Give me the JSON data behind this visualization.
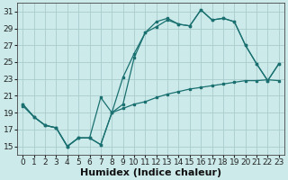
{
  "bg_color": "#cceaea",
  "grid_color": "#aacccc",
  "line_color": "#1a7070",
  "xlabel": "Humidex (Indice chaleur)",
  "xlabel_fontsize": 8,
  "tick_fontsize": 6.5,
  "ylim": [
    14,
    32
  ],
  "xlim": [
    -0.5,
    23.5
  ],
  "yticks": [
    15,
    17,
    19,
    21,
    23,
    25,
    27,
    29,
    31
  ],
  "xticks": [
    0,
    1,
    2,
    3,
    4,
    5,
    6,
    7,
    8,
    9,
    10,
    11,
    12,
    13,
    14,
    15,
    16,
    17,
    18,
    19,
    20,
    21,
    22,
    23
  ],
  "line1_x": [
    0,
    1,
    2,
    3,
    4,
    5,
    6,
    7,
    8,
    9,
    10,
    11,
    12,
    13,
    14,
    15,
    16,
    17,
    18,
    19,
    20,
    21,
    22,
    23
  ],
  "line1_y": [
    20.0,
    18.5,
    17.5,
    17.2,
    15.0,
    16.0,
    16.0,
    15.2,
    19.0,
    20.0,
    25.5,
    28.5,
    29.2,
    30.0,
    29.5,
    29.3,
    31.2,
    30.0,
    30.2,
    29.8,
    27.0,
    24.8,
    22.8,
    24.8
  ],
  "line2_x": [
    0,
    1,
    2,
    3,
    4,
    5,
    6,
    7,
    8,
    9,
    10,
    11,
    12,
    13,
    14,
    15,
    16,
    17,
    18,
    19,
    20,
    21,
    22,
    23
  ],
  "line2_y": [
    20.0,
    18.5,
    17.5,
    17.2,
    15.0,
    16.0,
    16.0,
    20.8,
    19.0,
    23.2,
    26.0,
    28.5,
    29.8,
    30.2,
    29.5,
    29.3,
    31.2,
    30.0,
    30.2,
    29.8,
    27.0,
    24.8,
    22.8,
    24.8
  ],
  "line3_x": [
    0,
    1,
    2,
    3,
    4,
    5,
    6,
    7,
    8,
    9,
    10,
    11,
    12,
    13,
    14,
    15,
    16,
    17,
    18,
    19,
    20,
    21,
    22,
    23
  ],
  "line3_y": [
    19.8,
    18.5,
    17.5,
    17.2,
    15.0,
    16.0,
    16.0,
    15.2,
    19.0,
    19.5,
    20.0,
    20.3,
    20.8,
    21.2,
    21.5,
    21.8,
    22.0,
    22.2,
    22.4,
    22.6,
    22.8,
    22.8,
    22.9,
    22.8
  ]
}
